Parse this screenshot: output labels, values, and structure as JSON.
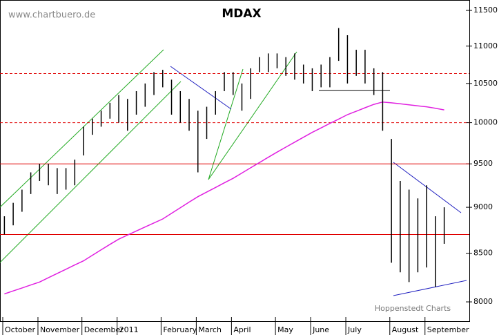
{
  "chart_data": {
    "type": "ohlc",
    "title": "MDAX",
    "watermark": "www.chartbuero.de",
    "source": "Hoppenstedt Charts",
    "log_scale": true,
    "ylim": [
      7810,
      11650
    ],
    "yticks": [
      {
        "value": 8000,
        "label": "8000"
      },
      {
        "value": 8500,
        "label": "8500"
      },
      {
        "value": 9000,
        "label": "9000"
      },
      {
        "value": 9500,
        "label": "9500"
      },
      {
        "value": 10000,
        "label": "10000"
      },
      {
        "value": 10500,
        "label": "10500"
      },
      {
        "value": 11000,
        "label": "11000"
      },
      {
        "value": 11500,
        "label": "11500"
      }
    ],
    "categories": [
      "October",
      null,
      null,
      null,
      "November",
      null,
      null,
      null,
      null,
      "December",
      null,
      null,
      null,
      "2011",
      null,
      null,
      null,
      null,
      "February",
      null,
      null,
      null,
      "March",
      null,
      null,
      null,
      "April",
      null,
      null,
      null,
      null,
      "May",
      null,
      null,
      null,
      "June",
      null,
      null,
      null,
      "July",
      null,
      null,
      null,
      null,
      "August",
      null,
      null,
      null,
      "September",
      null,
      null
    ],
    "bar_color": "#000000",
    "high": [
      8900,
      9050,
      9200,
      9400,
      9500,
      9500,
      9450,
      9450,
      9550,
      9950,
      10050,
      10150,
      10250,
      10350,
      10300,
      10400,
      10500,
      10650,
      10680,
      10550,
      10400,
      10300,
      10150,
      10200,
      10400,
      10650,
      10650,
      10500,
      10700,
      10850,
      10900,
      10900,
      10850,
      10900,
      10750,
      10700,
      10750,
      10850,
      11250,
      11150,
      10950,
      10950,
      10700,
      10650,
      9800,
      9300,
      9200,
      9100,
      9250,
      8900,
      9000
    ],
    "low": [
      8700,
      8800,
      8950,
      9150,
      9300,
      9250,
      9150,
      9200,
      9250,
      9600,
      9850,
      9950,
      10050,
      10000,
      9900,
      10100,
      10200,
      10350,
      10450,
      10100,
      10000,
      9900,
      9400,
      9800,
      10100,
      10400,
      10350,
      10150,
      10300,
      10650,
      10650,
      10700,
      10600,
      10550,
      10500,
      10400,
      10450,
      10450,
      10800,
      10500,
      10600,
      10500,
      10350,
      9900,
      8400,
      8300,
      8200,
      8300,
      8350,
      8150,
      8600
    ],
    "moving_average": {
      "color": "#e020e0",
      "values": [
        8080,
        8110,
        8140,
        8170,
        8200,
        8244,
        8288,
        8332,
        8376,
        8420,
        8478,
        8536,
        8594,
        8650,
        8694,
        8738,
        8782,
        8826,
        8870,
        8932,
        8995,
        9058,
        9120,
        9172,
        9225,
        9278,
        9330,
        9392,
        9454,
        9516,
        9578,
        9640,
        9700,
        9760,
        9820,
        9880,
        9935,
        9990,
        10045,
        10100,
        10143,
        10187,
        10230,
        10260,
        10250,
        10238,
        10225,
        10212,
        10200,
        10180,
        10160
      ]
    },
    "levels": [
      {
        "value": 10630,
        "color": "#e00000",
        "dashed": true
      },
      {
        "value": 10000,
        "color": "#e00000",
        "dashed": true
      },
      {
        "value": 9500,
        "color": "#e00000",
        "dashed": false
      },
      {
        "value": 8700,
        "color": "#e00000",
        "dashed": false
      }
    ]
  }
}
